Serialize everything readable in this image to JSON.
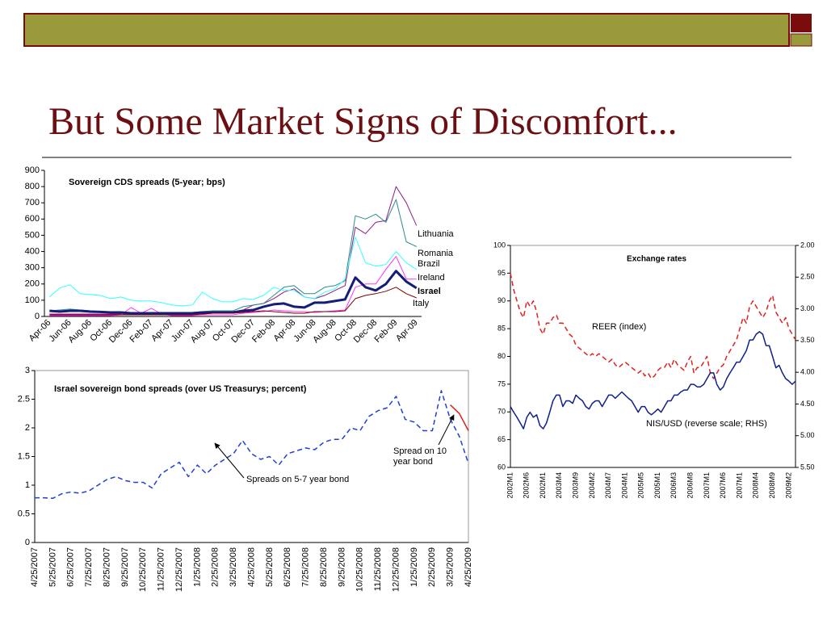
{
  "slide": {
    "title": "But Some Market Signs of Discomfort..."
  },
  "chart_data": [
    {
      "type": "line",
      "title": "Sovereign CDS spreads (5-year; bps)",
      "categories": [
        "Apr-06",
        null,
        "Jun-06",
        null,
        "Aug-06",
        null,
        "Oct-06",
        null,
        "Dec-06",
        null,
        "Feb-07",
        null,
        "Apr-07",
        null,
        "Jun-07",
        null,
        "Aug-07",
        null,
        "Oct-07",
        null,
        "Dec-07",
        null,
        "Feb-08",
        null,
        "Apr-08",
        null,
        "Jun-08",
        null,
        "Aug-08",
        null,
        "Oct-08",
        null,
        "Dec-08",
        null,
        "Feb-09",
        null,
        "Apr-09"
      ],
      "series": [
        {
          "name": "Lithuania",
          "color": "#8b1a8b",
          "line_width": 1,
          "values": [
            15,
            15,
            15,
            15,
            15,
            15,
            15,
            15,
            15,
            15,
            15,
            15,
            12,
            12,
            15,
            15,
            20,
            25,
            30,
            40,
            70,
            80,
            110,
            150,
            170,
            120,
            110,
            130,
            160,
            190,
            550,
            510,
            580,
            590,
            800,
            700,
            560
          ]
        },
        {
          "name": "Romania",
          "color": "#2e8b8b",
          "line_width": 1,
          "values": [
            35,
            40,
            45,
            40,
            35,
            30,
            30,
            25,
            25,
            25,
            25,
            25,
            25,
            25,
            25,
            30,
            35,
            35,
            35,
            60,
            70,
            80,
            130,
            180,
            190,
            140,
            140,
            180,
            190,
            220,
            620,
            600,
            630,
            580,
            720,
            460,
            430
          ]
        },
        {
          "name": "Brazil",
          "color": "#33ffff",
          "line_width": 1,
          "values": [
            120,
            175,
            195,
            140,
            135,
            130,
            110,
            120,
            100,
            95,
            95,
            85,
            70,
            65,
            70,
            150,
            110,
            90,
            90,
            110,
            105,
            130,
            180,
            160,
            160,
            120,
            110,
            150,
            170,
            230,
            490,
            330,
            310,
            320,
            400,
            330,
            290
          ]
        },
        {
          "name": "Ireland",
          "color": "#ff33ff",
          "line_width": 1,
          "values": [
            5,
            5,
            5,
            5,
            5,
            5,
            5,
            10,
            55,
            20,
            50,
            15,
            5,
            5,
            5,
            10,
            10,
            10,
            10,
            20,
            25,
            30,
            40,
            35,
            30,
            30,
            25,
            30,
            35,
            40,
            180,
            200,
            200,
            290,
            370,
            230,
            230
          ]
        },
        {
          "name": "Israel",
          "color": "#141e78",
          "line_width": 3,
          "values": [
            35,
            30,
            35,
            35,
            30,
            28,
            25,
            25,
            20,
            20,
            20,
            20,
            20,
            20,
            20,
            25,
            25,
            25,
            25,
            35,
            40,
            60,
            75,
            80,
            60,
            55,
            85,
            85,
            95,
            105,
            240,
            180,
            160,
            200,
            280,
            215,
            175
          ]
        },
        {
          "name": "Italy",
          "color": "#800000",
          "line_width": 1,
          "values": [
            10,
            10,
            10,
            10,
            10,
            10,
            10,
            10,
            10,
            10,
            10,
            10,
            10,
            10,
            10,
            15,
            20,
            20,
            20,
            25,
            30,
            35,
            30,
            25,
            20,
            20,
            30,
            30,
            30,
            35,
            110,
            130,
            140,
            155,
            180,
            140,
            115
          ]
        }
      ],
      "ylim": [
        0,
        900
      ],
      "yticks": [
        0,
        100,
        200,
        300,
        400,
        500,
        600,
        700,
        800,
        900
      ],
      "grid": false
    },
    {
      "type": "line",
      "title": "Israel sovereign bond spreads (over US Treasurys; percent)",
      "categories": [
        "4/25/2007",
        null,
        "5/25/2007",
        null,
        "6/25/2007",
        null,
        "7/25/2007",
        null,
        "8/25/2007",
        null,
        "9/25/2007",
        null,
        "10/25/2007",
        null,
        "11/25/2007",
        null,
        "12/25/2007",
        null,
        "1/25/2008",
        null,
        "2/25/2008",
        null,
        "3/25/2008",
        null,
        "4/25/2008",
        null,
        "5/25/2008",
        null,
        "6/25/2008",
        null,
        "7/25/2008",
        null,
        "8/25/2008",
        null,
        "9/25/2008",
        null,
        "10/25/2008",
        null,
        "11/25/2008",
        null,
        "12/25/2008",
        null,
        "1/25/2009",
        null,
        "2/25/2009",
        null,
        "3/25/2009",
        null,
        "4/25/2009"
      ],
      "series": [
        {
          "name": "Spreads on 5-7 year bond",
          "color": "#1f3fd6",
          "dashed": true,
          "values": [
            0.78,
            0.78,
            0.77,
            0.85,
            0.88,
            0.86,
            0.9,
            1.0,
            1.1,
            1.15,
            1.08,
            1.05,
            1.05,
            0.95,
            1.2,
            1.3,
            1.4,
            1.15,
            1.35,
            1.2,
            1.35,
            1.45,
            1.55,
            1.78,
            1.55,
            1.45,
            1.5,
            1.35,
            1.55,
            1.6,
            1.65,
            1.62,
            1.75,
            1.8,
            1.8,
            2.0,
            1.95,
            2.2,
            2.3,
            2.35,
            2.55,
            2.15,
            2.1,
            1.95,
            1.95,
            2.65,
            2.15,
            1.85,
            1.38
          ]
        },
        {
          "name": "Spread on 10 year bond",
          "color": "#e02020",
          "dashed": false,
          "values": [
            null,
            null,
            null,
            null,
            null,
            null,
            null,
            null,
            null,
            null,
            null,
            null,
            null,
            null,
            null,
            null,
            null,
            null,
            null,
            null,
            null,
            null,
            null,
            null,
            null,
            null,
            null,
            null,
            null,
            null,
            null,
            null,
            null,
            null,
            null,
            null,
            null,
            null,
            null,
            null,
            null,
            null,
            null,
            null,
            null,
            null,
            2.4,
            2.25,
            1.95
          ]
        }
      ],
      "ylim": [
        0,
        3
      ],
      "yticks": [
        0,
        0.5,
        1,
        1.5,
        2,
        2.5,
        3
      ],
      "grid": false
    },
    {
      "type": "line",
      "title": "Exchange rates",
      "categories": [
        "2002M1",
        null,
        null,
        null,
        null,
        "2002M6",
        null,
        null,
        null,
        null,
        "2002M1",
        null,
        null,
        null,
        null,
        "2003M4",
        null,
        null,
        null,
        null,
        "2003M9",
        null,
        null,
        null,
        null,
        "2004M2",
        null,
        null,
        null,
        null,
        "2004M7",
        null,
        null,
        null,
        null,
        "2004M1",
        null,
        null,
        null,
        null,
        "2005M5",
        null,
        null,
        null,
        null,
        "2005M1",
        null,
        null,
        null,
        null,
        "2006M3",
        null,
        null,
        null,
        null,
        "2006M8",
        null,
        null,
        null,
        null,
        "2007M1",
        null,
        null,
        null,
        null,
        "2007M6",
        null,
        null,
        null,
        null,
        "2007M1",
        null,
        null,
        null,
        null,
        "2008M4",
        null,
        null,
        null,
        null,
        "2008M9",
        null,
        null,
        null,
        null,
        "2009M2",
        null,
        null
      ],
      "series": [
        {
          "name": "REER (index)",
          "color": "#e02020",
          "dashed": true,
          "axis": "y",
          "values": [
            95,
            92,
            90,
            88,
            87,
            90,
            89,
            90,
            88,
            85,
            84,
            86,
            86,
            87,
            87.5,
            86,
            86,
            85,
            84,
            83.5,
            82,
            81.5,
            81,
            80.5,
            80,
            80.5,
            80,
            80.5,
            80,
            79.5,
            79,
            79.5,
            78.5,
            78,
            78.5,
            79,
            78.5,
            78,
            77.5,
            77,
            77.5,
            76.5,
            77,
            76,
            76.5,
            77.5,
            78,
            78,
            79,
            78,
            79.5,
            78.5,
            78,
            77.5,
            79,
            80,
            77,
            78,
            78,
            79,
            80,
            77,
            76,
            77,
            78,
            78.5,
            80,
            81,
            82,
            83,
            85,
            87,
            86,
            89,
            90,
            89,
            88,
            87,
            88,
            90,
            91,
            88,
            87,
            86,
            87,
            85,
            84,
            83
          ]
        },
        {
          "name": "NIS/USD (reverse scale; RHS)",
          "color": "#10208a",
          "dashed": false,
          "axis": "y2",
          "values": [
            4.54,
            4.63,
            4.71,
            4.8,
            4.89,
            4.71,
            4.63,
            4.71,
            4.67,
            4.84,
            4.89,
            4.8,
            4.63,
            4.45,
            4.36,
            4.36,
            4.54,
            4.45,
            4.45,
            4.49,
            4.36,
            4.41,
            4.45,
            4.54,
            4.58,
            4.49,
            4.45,
            4.45,
            4.54,
            4.45,
            4.36,
            4.36,
            4.41,
            4.36,
            4.31,
            4.36,
            4.41,
            4.45,
            4.54,
            4.63,
            4.54,
            4.54,
            4.63,
            4.67,
            4.63,
            4.58,
            4.63,
            4.54,
            4.45,
            4.45,
            4.36,
            4.36,
            4.31,
            4.28,
            4.28,
            4.19,
            4.19,
            4.23,
            4.23,
            4.19,
            4.1,
            4.01,
            4.01,
            4.19,
            4.28,
            4.23,
            4.1,
            4.01,
            3.93,
            3.84,
            3.84,
            3.75,
            3.66,
            3.49,
            3.49,
            3.4,
            3.36,
            3.4,
            3.58,
            3.58,
            3.75,
            3.93,
            3.89,
            4.01,
            4.1,
            4.14,
            4.19,
            4.14
          ]
        }
      ],
      "ylim": [
        60,
        100
      ],
      "yticks": [
        60,
        65,
        70,
        75,
        80,
        85,
        90,
        95,
        100
      ],
      "y2lim": [
        2,
        5.5
      ],
      "y2_reversed": true,
      "y2ticks": [
        {
          "value": 2,
          "label": "2.00"
        },
        {
          "value": 2.5,
          "label": "2.50"
        },
        {
          "value": 3,
          "label": "3.00"
        },
        {
          "value": 3.5,
          "label": "3.50"
        },
        {
          "value": 4,
          "label": "4.00"
        },
        {
          "value": 4.5,
          "label": "4.50"
        },
        {
          "value": 5,
          "label": "5.00"
        },
        {
          "value": 5.5,
          "label": "5.50"
        }
      ],
      "grid": false
    }
  ]
}
